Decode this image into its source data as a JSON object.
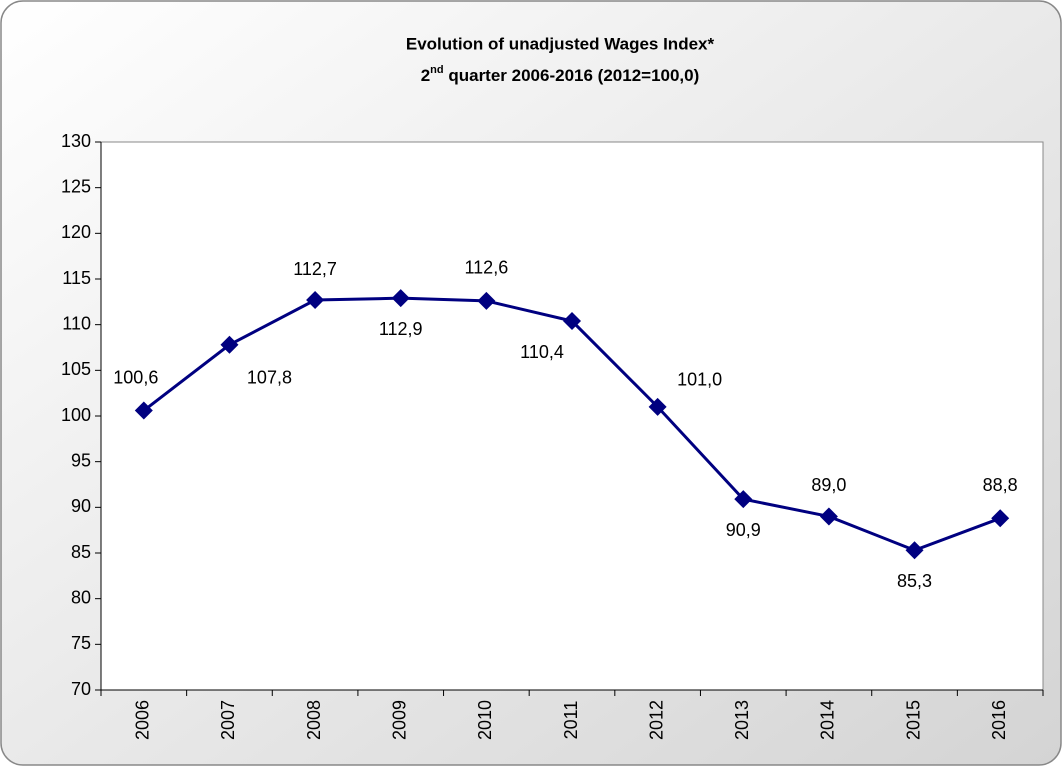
{
  "chart_data": {
    "type": "line",
    "title": "Evolution of unadjusted Wages Index*",
    "subtitle": [
      "2",
      "nd",
      " quarter 2006-2016 (2012=100,0)"
    ],
    "categories": [
      "2006",
      "2007",
      "2008",
      "2009",
      "2010",
      "2011",
      "2012",
      "2013",
      "2014",
      "2015",
      "2016"
    ],
    "values": [
      100.6,
      107.8,
      112.7,
      112.9,
      112.6,
      110.4,
      101.0,
      90.9,
      89.0,
      85.3,
      88.8
    ],
    "value_labels": [
      "100,6",
      "107,8",
      "112,7",
      "112,9",
      "112,6",
      "110,4",
      "101,0",
      "90,9",
      "89,0",
      "85,3",
      "88,8"
    ],
    "color": "#000080",
    "ylim": [
      70,
      130
    ],
    "yticks": [
      70,
      75,
      80,
      85,
      90,
      95,
      100,
      105,
      110,
      115,
      120,
      125,
      130
    ],
    "grid": false
  }
}
